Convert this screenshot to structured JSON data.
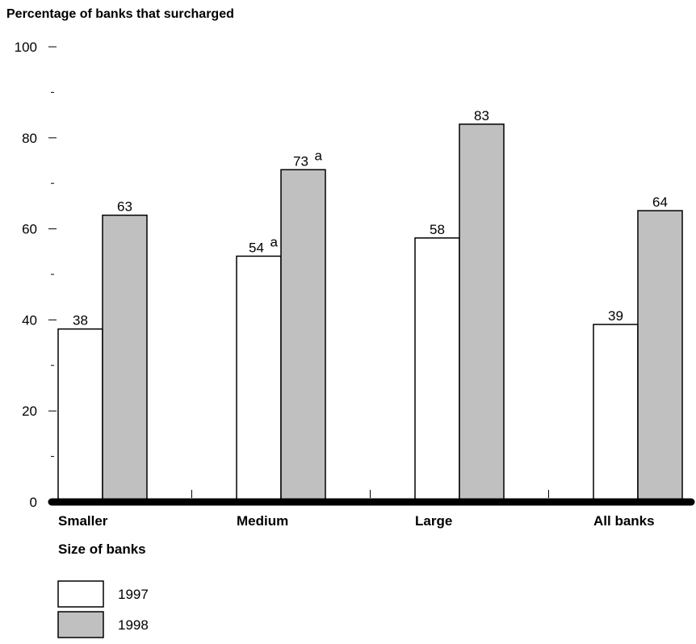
{
  "chart_data": {
    "type": "bar",
    "title": "Percentage of banks that surcharged",
    "xlabel": "Size of banks",
    "ylabel": "",
    "ylim": [
      0,
      100
    ],
    "y_ticks": [
      0,
      20,
      40,
      60,
      80,
      100
    ],
    "categories": [
      "Smaller",
      "Medium",
      "Large",
      "All banks"
    ],
    "series": [
      {
        "name": "1997",
        "values": [
          38,
          54,
          58,
          39
        ],
        "notes": [
          "",
          "a",
          "",
          ""
        ],
        "color": "#ffffff"
      },
      {
        "name": "1998",
        "values": [
          63,
          73,
          83,
          64
        ],
        "notes": [
          "",
          "a",
          "",
          ""
        ],
        "color": "#c0c0c0"
      }
    ],
    "legend_position": "bottom-left",
    "grid": false
  }
}
